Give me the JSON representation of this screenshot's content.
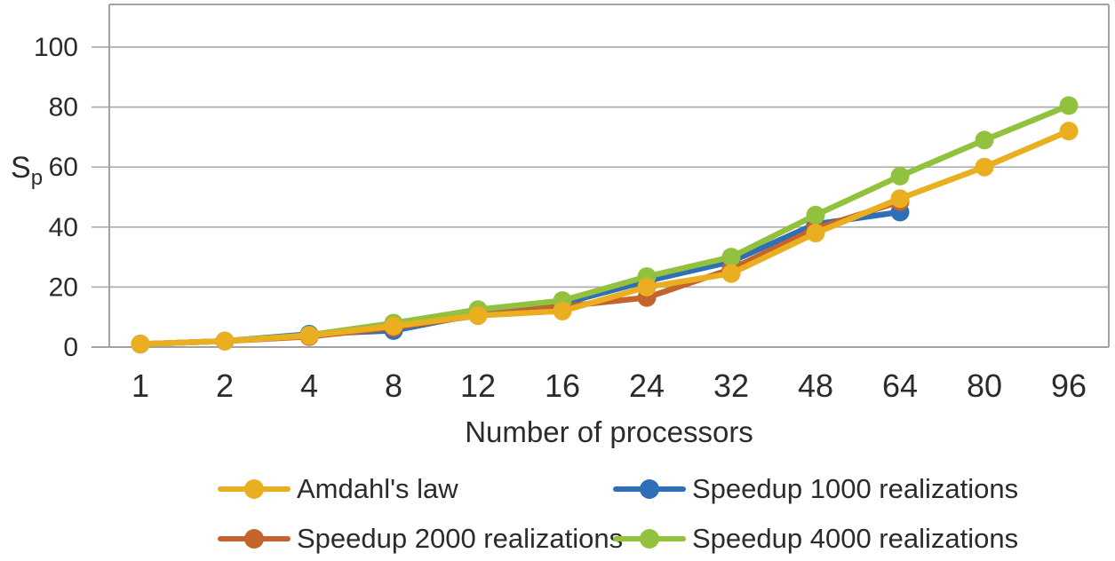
{
  "chart_data": {
    "type": "line",
    "title": "",
    "xlabel": "Number of processors",
    "ylabel": "Sp",
    "ylabel_main": "S",
    "ylabel_sub": "p",
    "categories": [
      "1",
      "2",
      "4",
      "8",
      "12",
      "16",
      "24",
      "32",
      "48",
      "64",
      "80",
      "96"
    ],
    "y_ticks": [
      0,
      20,
      40,
      60,
      80,
      100
    ],
    "ylim": [
      0,
      100
    ],
    "grid": "horizontal",
    "legend_position": "bottom",
    "colors": {
      "grid": "#adadad",
      "axis": "#a2a2a2",
      "text": "#2b2b2b"
    },
    "series": [
      {
        "name": "Amdahl's law",
        "color": "#eaaf20",
        "values": [
          1,
          2,
          3.8,
          7,
          10.5,
          12,
          20,
          24.5,
          38,
          49.5,
          60,
          72
        ]
      },
      {
        "name": "Speedup 1000 realizations",
        "color": "#2e6fb7",
        "values": [
          1,
          2,
          4.3,
          5.5,
          11,
          14.5,
          22,
          28.5,
          41,
          45,
          null,
          null
        ]
      },
      {
        "name": "Speedup 2000 realizations",
        "color": "#c4632b",
        "values": [
          1,
          2,
          3.5,
          6.5,
          10.5,
          13.5,
          16.5,
          26,
          39.5,
          48.5,
          null,
          null
        ]
      },
      {
        "name": "Speedup 4000 realizations",
        "color": "#92c13e",
        "values": [
          1,
          2,
          4,
          8,
          12.5,
          15.5,
          23.5,
          30,
          44,
          57,
          69,
          80.5
        ]
      }
    ],
    "draw_order": [
      "Speedup 1000 realizations",
      "Speedup 2000 realizations",
      "Speedup 4000 realizations",
      "Amdahl's law"
    ]
  }
}
